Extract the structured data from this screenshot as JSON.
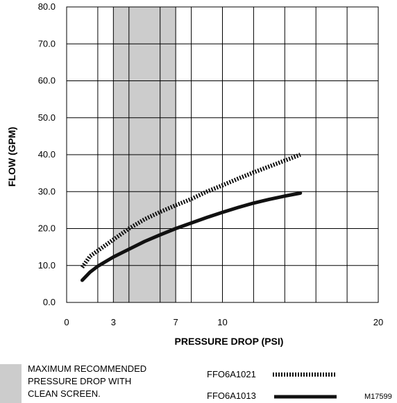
{
  "chart_data": {
    "type": "line",
    "xlabel": "PRESSURE DROP (PSI)",
    "ylabel": "FLOW (GPM)",
    "xlim": [
      0,
      20
    ],
    "ylim": [
      0,
      80
    ],
    "x_ticks": [
      0,
      3,
      7,
      10,
      20
    ],
    "x_tick_labels": [
      "0",
      "3",
      "7",
      "10",
      "20"
    ],
    "y_ticks": [
      0,
      10,
      20,
      30,
      40,
      50,
      60,
      70,
      80
    ],
    "y_tick_labels": [
      "0.0",
      "10.0",
      "20.0",
      "30.0",
      "40.0",
      "50.0",
      "60.0",
      "70.0",
      "80.0"
    ],
    "grid_x": [
      0,
      2,
      3,
      4,
      6,
      7,
      8,
      10,
      12,
      14,
      16,
      18,
      20
    ],
    "grid_y": [
      0,
      10,
      20,
      30,
      40,
      50,
      60,
      70,
      80
    ],
    "grid": true,
    "shaded_band": {
      "x_range": [
        3,
        7
      ],
      "color": "#cccccc",
      "label": "MAXIMUM RECOMMENDED PRESSURE DROP WITH CLEAN SCREEN.",
      "label_lines": [
        "MAXIMUM RECOMMENDED",
        "PRESSURE DROP WITH",
        "CLEAN SCREEN."
      ]
    },
    "series": [
      {
        "name": "FFO6A1021",
        "style": "dotted",
        "color": "#111111",
        "x": [
          1.0,
          1.5,
          2.0,
          3.0,
          4.0,
          5.0,
          6.0,
          7.0,
          8.0,
          9.0,
          10.0,
          11.0,
          12.0,
          13.0,
          14.0,
          15.0
        ],
        "y": [
          9.5,
          12.5,
          14.0,
          17.0,
          20.0,
          22.5,
          24.5,
          26.3,
          28.0,
          30.0,
          31.7,
          33.5,
          35.2,
          36.8,
          38.4,
          40.0
        ]
      },
      {
        "name": "FFO6A1013",
        "style": "solid",
        "color": "#111111",
        "x": [
          1.0,
          1.5,
          2.0,
          3.0,
          4.0,
          5.0,
          6.0,
          7.0,
          8.0,
          9.0,
          10.0,
          11.0,
          12.0,
          13.0,
          14.0,
          15.0
        ],
        "y": [
          6.0,
          8.2,
          9.8,
          12.3,
          14.4,
          16.5,
          18.3,
          20.0,
          21.5,
          23.0,
          24.4,
          25.7,
          26.9,
          27.9,
          28.8,
          29.6
        ]
      }
    ],
    "legend_position": "bottom",
    "figure_code": "M17599"
  }
}
